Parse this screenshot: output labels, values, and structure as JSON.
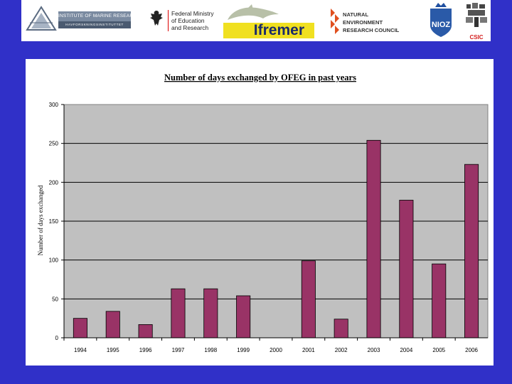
{
  "logos": {
    "imr": {
      "name": "INSTITUTE OF MARINE RESEARCH",
      "sub": "HAVFORSKNINGSINSTITUTTET"
    },
    "bmbf": {
      "lines": [
        "Federal Ministry",
        "of Education",
        "and Research"
      ]
    },
    "ifremer": {
      "name": "Ifremer"
    },
    "nerc": {
      "lines": [
        "NATURAL",
        "ENVIRONMENT",
        "RESEARCH COUNCIL"
      ]
    },
    "nioz": {
      "name": "NIOZ"
    },
    "csic": {
      "name": "CSIC"
    }
  },
  "colors": {
    "background": "#3030c8",
    "bar": "#993366",
    "plot_area": "#c0c0c0"
  },
  "chart_data": {
    "type": "bar",
    "title": "Number of days exchanged by OFEG in past years",
    "xlabel": "",
    "ylabel": "Number of days exchanged",
    "categories": [
      "1994",
      "1995",
      "1996",
      "1997",
      "1998",
      "1999",
      "2000",
      "2001",
      "2002",
      "2003",
      "2004",
      "2005",
      "2006"
    ],
    "values": [
      25,
      34,
      17,
      63,
      63,
      54,
      0,
      99,
      24,
      254,
      177,
      95,
      223
    ],
    "ylim": [
      0,
      300
    ],
    "yticks": [
      0,
      50,
      100,
      150,
      200,
      250,
      300
    ],
    "grid": true,
    "legend": "none"
  }
}
